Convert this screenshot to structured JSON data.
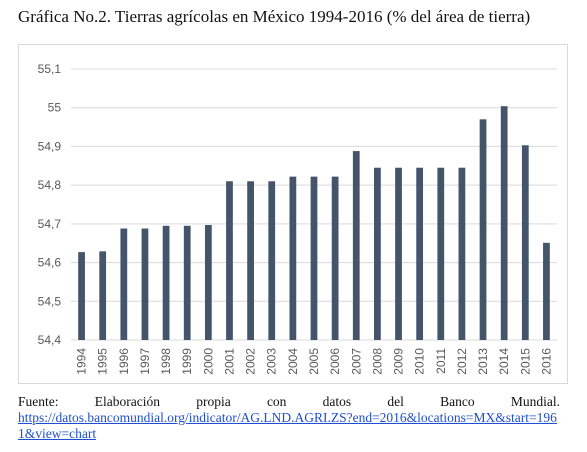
{
  "title": "Gráfica No.2. Tierras agrícolas en México 1994-2016 (% del área de tierra)",
  "source": {
    "words": [
      "Fuente:",
      "Elaboración",
      "propia",
      "con",
      "datos",
      "del",
      "Banco",
      "Mundial."
    ],
    "link": "https://datos.bancomundial.org/indicator/AG.LND.AGRI.ZS?end=2016&locations=MX&start=1961&view=chart"
  },
  "colors": {
    "bar": "#44546a",
    "grid": "#d9d9d9",
    "axis_text": "#595959"
  },
  "chart_data": {
    "type": "bar",
    "categories": [
      "1994",
      "1995",
      "1996",
      "1997",
      "1998",
      "1999",
      "2000",
      "2001",
      "2002",
      "2003",
      "2004",
      "2005",
      "2006",
      "2007",
      "2008",
      "2009",
      "2010",
      "2011",
      "2012",
      "2013",
      "2014",
      "2015",
      "2016"
    ],
    "values": [
      54.627,
      54.629,
      54.688,
      54.688,
      54.695,
      54.695,
      54.697,
      54.81,
      54.81,
      54.81,
      54.822,
      54.822,
      54.822,
      54.888,
      54.845,
      54.845,
      54.845,
      54.845,
      54.845,
      54.97,
      55.004,
      54.903,
      54.651
    ],
    "yticks": [
      "54,4",
      "54,5",
      "54,6",
      "54,7",
      "54,8",
      "54,9",
      "55",
      "55,1"
    ],
    "ylim": [
      54.4,
      55.1
    ],
    "grid": true,
    "legend": "none"
  }
}
